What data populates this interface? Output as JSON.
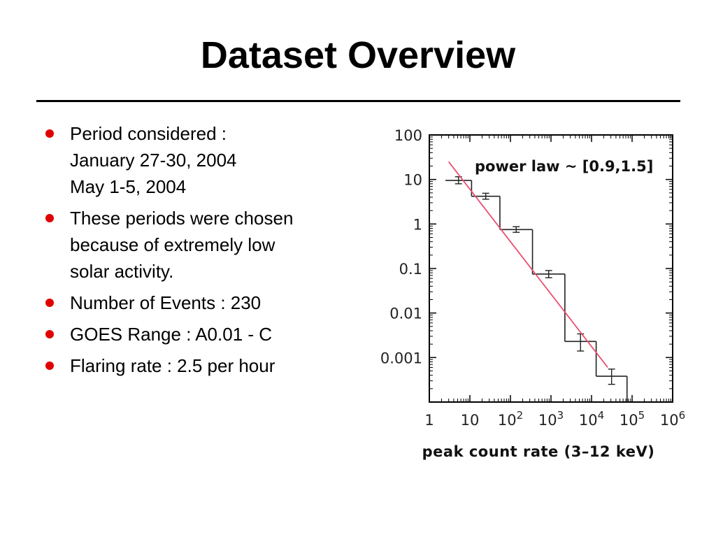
{
  "slide": {
    "title": "Dataset Overview",
    "bullet_color": "#e00000",
    "bullets": [
      {
        "lines": [
          "Period considered :",
          "January 27-30, 2004",
          "May 1-5, 2004"
        ]
      },
      {
        "lines": [
          "These periods were chosen",
          "because of extremely low",
          "solar activity."
        ]
      },
      {
        "lines": [
          "Number of Events : 230"
        ]
      },
      {
        "lines": [
          "GOES Range : A0.01 - C"
        ]
      },
      {
        "lines": [
          "Flaring rate : 2.5 per hour"
        ]
      }
    ]
  },
  "chart_data": {
    "type": "bar",
    "style": "step histogram with error bars",
    "title": "",
    "xlabel": "peak count rate (3–12 keV)",
    "ylabel": "",
    "xscale": "log",
    "yscale": "log",
    "xlim": [
      1,
      1000000
    ],
    "ylim": [
      0.0001,
      100
    ],
    "x_tick_labels": [
      {
        "value": 1,
        "base": "1",
        "exp": ""
      },
      {
        "value": 10,
        "base": "10",
        "exp": ""
      },
      {
        "value": 100,
        "base": "10",
        "exp": "2"
      },
      {
        "value": 1000,
        "base": "10",
        "exp": "3"
      },
      {
        "value": 10000,
        "base": "10",
        "exp": "4"
      },
      {
        "value": 100000,
        "base": "10",
        "exp": "5"
      },
      {
        "value": 1000000,
        "base": "10",
        "exp": "6"
      }
    ],
    "y_tick_labels": [
      {
        "value": 100,
        "label": "100"
      },
      {
        "value": 10,
        "label": "10"
      },
      {
        "value": 1,
        "label": "1"
      },
      {
        "value": 0.1,
        "label": "0.1"
      },
      {
        "value": 0.01,
        "label": "0.01"
      },
      {
        "value": 0.001,
        "label": "0.001"
      }
    ],
    "bins": [
      {
        "x_low": 2.5,
        "x_high": 11,
        "value": 9.5,
        "err_low": 8.0,
        "err_high": 11.5
      },
      {
        "x_low": 11,
        "x_high": 55,
        "value": 4.2,
        "err_low": 3.6,
        "err_high": 4.9
      },
      {
        "x_low": 55,
        "x_high": 350,
        "value": 0.75,
        "err_low": 0.65,
        "err_high": 0.87
      },
      {
        "x_low": 350,
        "x_high": 2200,
        "value": 0.075,
        "err_low": 0.062,
        "err_high": 0.09
      },
      {
        "x_low": 2200,
        "x_high": 13000,
        "value": 0.0023,
        "err_low": 0.0014,
        "err_high": 0.0034
      },
      {
        "x_low": 13000,
        "x_high": 75000,
        "value": 0.00038,
        "err_low": 0.00025,
        "err_high": 0.00055
      }
    ],
    "fit_line": {
      "name": "power law ~ [0.9,1.5]",
      "color": "#e8506e",
      "x": [
        3,
        25000
      ],
      "y": [
        25,
        0.0006
      ]
    },
    "annotations": [
      "power law ~ [0.9,1.5]"
    ],
    "grid": false,
    "legend": "top-right"
  }
}
